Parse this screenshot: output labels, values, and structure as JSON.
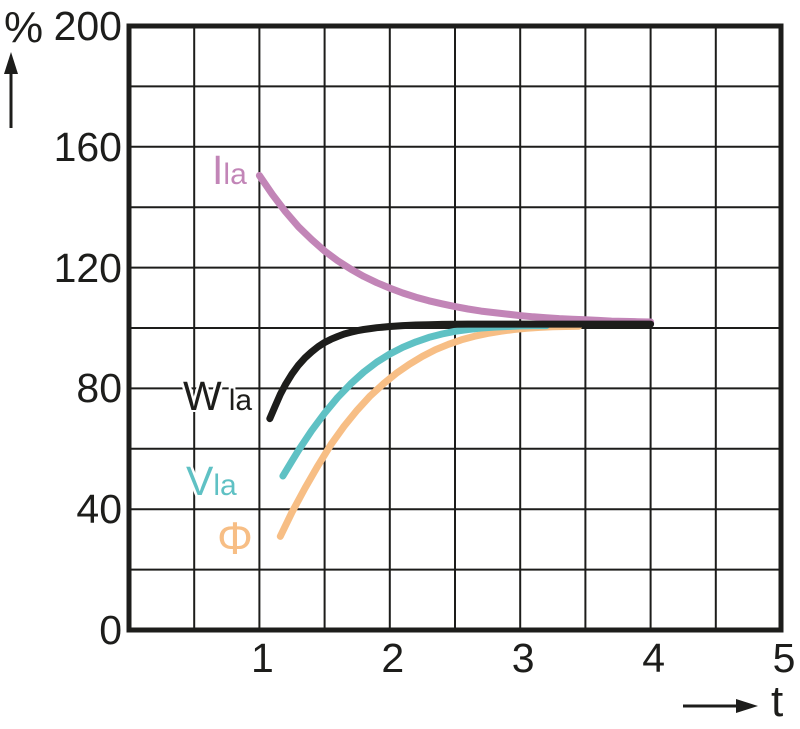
{
  "y_axis": {
    "unit_label": "%"
  },
  "x_axis": {
    "label": "t"
  },
  "chart_data": {
    "type": "line",
    "title": "",
    "xlabel": "t",
    "ylabel": "%",
    "xlim": [
      0,
      5
    ],
    "ylim": [
      0,
      200
    ],
    "x_ticks": [
      1,
      2,
      3,
      4,
      5
    ],
    "y_ticks": [
      0,
      40,
      80,
      120,
      160,
      200
    ],
    "x_grid_step": 0.5,
    "y_grid_step": 20,
    "grid": true,
    "grid_color": "#1d1d1b",
    "legend_position": "inline-labels",
    "draw_order": [
      3,
      2,
      0,
      1
    ],
    "series": [
      {
        "name": "Ila",
        "label_main": "I",
        "label_sub": "la",
        "color": "#c285b7",
        "points": [
          [
            1.0,
            150.5
          ],
          [
            1.1,
            144.2
          ],
          [
            1.2,
            138.5
          ],
          [
            1.3,
            133.5
          ],
          [
            1.4,
            129.3
          ],
          [
            1.5,
            125.5
          ],
          [
            1.6,
            122.3
          ],
          [
            1.7,
            119.5
          ],
          [
            1.8,
            117.1
          ],
          [
            1.9,
            115.0
          ],
          [
            2.0,
            113.2
          ],
          [
            2.1,
            111.6
          ],
          [
            2.2,
            110.2
          ],
          [
            2.3,
            109.0
          ],
          [
            2.4,
            108.0
          ],
          [
            2.5,
            107.1
          ],
          [
            2.6,
            106.3
          ],
          [
            2.7,
            105.6
          ],
          [
            2.8,
            105.1
          ],
          [
            2.9,
            104.6
          ],
          [
            3.0,
            104.1
          ],
          [
            3.1,
            103.7
          ],
          [
            3.2,
            103.4
          ],
          [
            3.3,
            103.1
          ],
          [
            3.4,
            102.9
          ],
          [
            3.5,
            102.7
          ],
          [
            3.6,
            102.5
          ],
          [
            3.7,
            102.3
          ],
          [
            3.8,
            102.2
          ],
          [
            3.9,
            102.1
          ],
          [
            4.0,
            102.0
          ]
        ]
      },
      {
        "name": "Wla",
        "label_main": "W",
        "label_sub": "la",
        "color": "#1d1d1b",
        "points": [
          [
            1.08,
            70
          ],
          [
            1.12,
            74
          ],
          [
            1.16,
            78
          ],
          [
            1.2,
            81.3
          ],
          [
            1.25,
            84.8
          ],
          [
            1.3,
            87.7
          ],
          [
            1.35,
            90.1
          ],
          [
            1.4,
            92.1
          ],
          [
            1.45,
            93.8
          ],
          [
            1.5,
            95.2
          ],
          [
            1.55,
            96.3
          ],
          [
            1.6,
            97.2
          ],
          [
            1.65,
            98.0
          ],
          [
            1.7,
            98.6
          ],
          [
            1.75,
            99.1
          ],
          [
            1.8,
            99.5
          ],
          [
            1.85,
            99.8
          ],
          [
            1.9,
            100.1
          ],
          [
            1.95,
            100.3
          ],
          [
            2.0,
            100.5
          ],
          [
            2.1,
            100.8
          ],
          [
            2.2,
            101.0
          ],
          [
            2.3,
            101.1
          ],
          [
            2.4,
            101.2
          ],
          [
            2.6,
            101.3
          ],
          [
            2.8,
            101.3
          ],
          [
            3.0,
            101.3
          ],
          [
            3.2,
            101.3
          ],
          [
            3.4,
            101.3
          ],
          [
            3.6,
            101.3
          ],
          [
            3.8,
            101.3
          ],
          [
            4.0,
            101.3
          ]
        ]
      },
      {
        "name": "Vla",
        "label_main": "V",
        "label_sub": "la",
        "color": "#5fc1c4",
        "points": [
          [
            1.18,
            51
          ],
          [
            1.25,
            56
          ],
          [
            1.3,
            59.5
          ],
          [
            1.4,
            66
          ],
          [
            1.5,
            71.8
          ],
          [
            1.6,
            77
          ],
          [
            1.7,
            81.5
          ],
          [
            1.8,
            85.4
          ],
          [
            1.9,
            88.7
          ],
          [
            2.0,
            91.4
          ],
          [
            2.1,
            93.6
          ],
          [
            2.2,
            95.4
          ],
          [
            2.3,
            96.9
          ],
          [
            2.4,
            98.0
          ],
          [
            2.5,
            98.9
          ],
          [
            2.6,
            99.5
          ],
          [
            2.7,
            100.0
          ],
          [
            2.8,
            100.3
          ],
          [
            2.9,
            100.5
          ],
          [
            3.0,
            100.7
          ],
          [
            3.1,
            100.8
          ],
          [
            3.2,
            100.8
          ]
        ]
      },
      {
        "name": "Phi",
        "label_main": "Φ",
        "label_sub": "",
        "color": "#f7be85",
        "points": [
          [
            1.16,
            31
          ],
          [
            1.25,
            39
          ],
          [
            1.35,
            47
          ],
          [
            1.45,
            54.5
          ],
          [
            1.55,
            61.5
          ],
          [
            1.65,
            67.5
          ],
          [
            1.75,
            72.8
          ],
          [
            1.85,
            77.5
          ],
          [
            1.95,
            81.5
          ],
          [
            2.05,
            85
          ],
          [
            2.15,
            88
          ],
          [
            2.25,
            90.6
          ],
          [
            2.35,
            92.8
          ],
          [
            2.45,
            94.6
          ],
          [
            2.55,
            96.1
          ],
          [
            2.65,
            97.3
          ],
          [
            2.75,
            98.2
          ],
          [
            2.85,
            98.9
          ],
          [
            2.95,
            99.5
          ],
          [
            3.05,
            99.9
          ],
          [
            3.15,
            100.2
          ],
          [
            3.25,
            100.4
          ],
          [
            3.35,
            100.5
          ],
          [
            3.45,
            100.6
          ]
        ]
      }
    ]
  }
}
